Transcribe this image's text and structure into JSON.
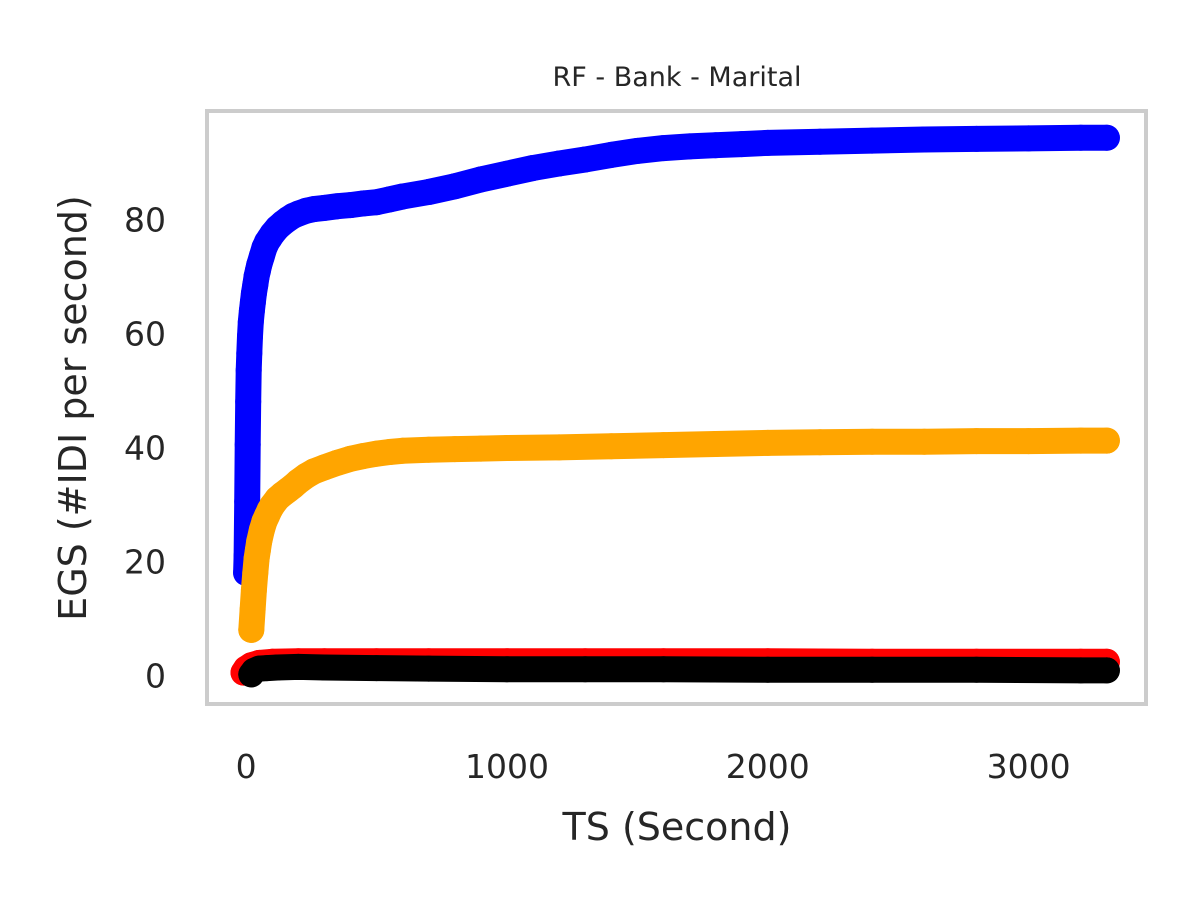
{
  "chart_data": {
    "type": "line",
    "title": "RF - Bank - Marital",
    "xlabel": "TS (Second)",
    "ylabel": "EGS (#IDI  per second)",
    "xlim": [
      -150,
      3450
    ],
    "ylim": [
      -5,
      99
    ],
    "xticks": [
      0,
      1000,
      2000,
      3000
    ],
    "yticks": [
      0,
      20,
      40,
      60,
      80
    ],
    "grid": false,
    "frame_color": "#cccccc",
    "series": [
      {
        "color": "#0000ff",
        "x": [
          0,
          2,
          4,
          6,
          8,
          10,
          12,
          15,
          18,
          22,
          26,
          30,
          35,
          40,
          45,
          50,
          60,
          70,
          80,
          90,
          100,
          120,
          140,
          160,
          180,
          200,
          230,
          260,
          300,
          350,
          400,
          450,
          500,
          550,
          600,
          700,
          800,
          900,
          1000,
          1100,
          1200,
          1300,
          1400,
          1500,
          1600,
          1700,
          1800,
          1900,
          2000,
          2200,
          2400,
          2600,
          2800,
          3000,
          3200,
          3300
        ],
        "y": [
          18,
          21,
          30.5,
          40.5,
          48,
          53.5,
          56.5,
          59.5,
          62,
          64,
          65.5,
          67,
          68.5,
          70,
          71,
          72,
          73.5,
          75,
          76,
          76.7,
          77.4,
          78.5,
          79.3,
          80,
          80.6,
          81,
          81.5,
          81.8,
          82,
          82.3,
          82.5,
          82.8,
          83,
          83.5,
          84,
          84.8,
          85.8,
          87,
          88,
          89,
          89.8,
          90.5,
          91.3,
          92,
          92.5,
          92.8,
          93,
          93.2,
          93.4,
          93.6,
          93.8,
          94,
          94.1,
          94.2,
          94.3,
          94.3
        ]
      },
      {
        "color": "#ffa500",
        "x": [
          20,
          25,
          30,
          35,
          40,
          45,
          50,
          60,
          70,
          80,
          90,
          100,
          120,
          140,
          160,
          180,
          200,
          230,
          260,
          300,
          350,
          400,
          450,
          500,
          550,
          600,
          700,
          800,
          900,
          1000,
          1200,
          1400,
          1600,
          1800,
          2000,
          2200,
          2400,
          2600,
          2800,
          3000,
          3200,
          3300
        ],
        "y": [
          8,
          11.5,
          15,
          18,
          20.5,
          22,
          23.5,
          25.5,
          27,
          28,
          29,
          29.8,
          31,
          31.8,
          32.5,
          33.2,
          34,
          35,
          35.8,
          36.5,
          37.3,
          38,
          38.5,
          38.9,
          39.2,
          39.4,
          39.6,
          39.7,
          39.8,
          39.9,
          40,
          40.2,
          40.4,
          40.6,
          40.8,
          40.9,
          41,
          41,
          41.1,
          41.1,
          41.2,
          41.2
        ]
      },
      {
        "color": "#ff0000",
        "x": [
          -10,
          0,
          20,
          50,
          100,
          200,
          300,
          500,
          700,
          1000,
          1300,
          1600,
          2000,
          2400,
          2800,
          3200,
          3300
        ],
        "y": [
          0.5,
          1.2,
          1.8,
          2.2,
          2.4,
          2.5,
          2.5,
          2.5,
          2.5,
          2.5,
          2.5,
          2.5,
          2.5,
          2.4,
          2.4,
          2.4,
          2.4
        ]
      },
      {
        "color": "#000000",
        "x": [
          20,
          30,
          50,
          80,
          120,
          200,
          300,
          500,
          700,
          1000,
          1300,
          1600,
          2000,
          2400,
          2800,
          3200,
          3300
        ],
        "y": [
          0.2,
          0.8,
          1.2,
          1.3,
          1.4,
          1.5,
          1.4,
          1.3,
          1.2,
          1.1,
          1.1,
          1.1,
          1,
          1,
          1,
          0.9,
          0.9
        ]
      }
    ]
  }
}
